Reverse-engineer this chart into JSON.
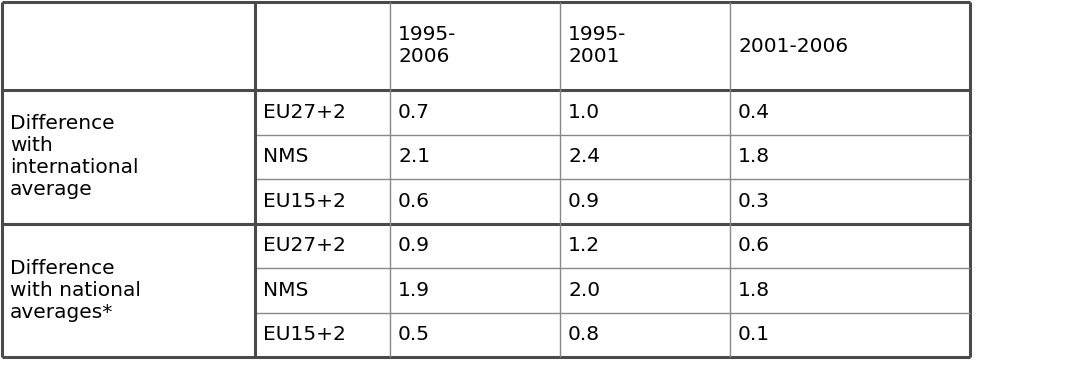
{
  "col_headers": [
    "",
    "",
    "1995-\n2006",
    "1995-\n2001",
    "2001-2006"
  ],
  "row_group1_label": "Difference\nwith\ninternational\naverage",
  "row_group2_label": "Difference\nwith national\naverages*",
  "subrows": [
    "EU27+2",
    "NMS",
    "EU15+2"
  ],
  "group1_data": [
    [
      "0.7",
      "1.0",
      "0.4"
    ],
    [
      "2.1",
      "2.4",
      "1.8"
    ],
    [
      "0.6",
      "0.9",
      "0.3"
    ]
  ],
  "group2_data": [
    [
      "0.9",
      "1.2",
      "0.6"
    ],
    [
      "1.9",
      "2.0",
      "1.8"
    ],
    [
      "0.5",
      "0.8",
      "0.1"
    ]
  ],
  "border_color": "#888888",
  "thick_border_color": "#4a4a4a",
  "bg_color": "#ffffff",
  "text_color": "#000000",
  "font_size": 14.5,
  "font_family": "DejaVu Sans"
}
